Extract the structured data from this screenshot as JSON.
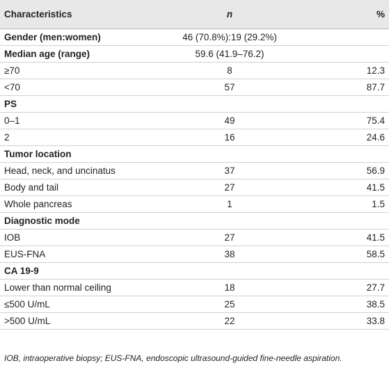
{
  "table": {
    "header": [
      "Characteristics",
      "n",
      "%"
    ],
    "groups": [
      {
        "title": "Gender (men:women)",
        "value": "46 (70.8%):19 (29.2%)"
      },
      {
        "title": "Median age (range)",
        "value": "59.6 (41.9–76.2)",
        "rows": [
          [
            "≥70",
            8,
            12.3
          ],
          [
            "<70",
            57,
            87.7
          ]
        ]
      },
      {
        "title": "PS",
        "rows": [
          [
            "0–1",
            49,
            75.4
          ],
          [
            "2",
            16,
            24.6
          ]
        ]
      },
      {
        "title": "Tumor location",
        "rows": [
          [
            "Head, neck, and uncinatus",
            37,
            56.9
          ],
          [
            "Body and tail",
            27,
            41.5
          ],
          [
            "Whole pancreas",
            1,
            1.5
          ]
        ]
      },
      {
        "title": "Diagnostic mode",
        "rows": [
          [
            "IOB",
            27,
            41.5
          ],
          [
            "EUS-FNA",
            38,
            58.5
          ]
        ]
      },
      {
        "title": "CA 19-9",
        "rows": [
          [
            "Lower than normal ceiling",
            18,
            27.7
          ],
          [
            "≤500 U/mL",
            25,
            38.5
          ],
          [
            ">500 U/mL",
            22,
            33.8
          ]
        ]
      }
    ],
    "footnote": "IOB, intraoperative biopsy; EUS-FNA, endoscopic ultrasound-guided fine-needle aspiration."
  }
}
